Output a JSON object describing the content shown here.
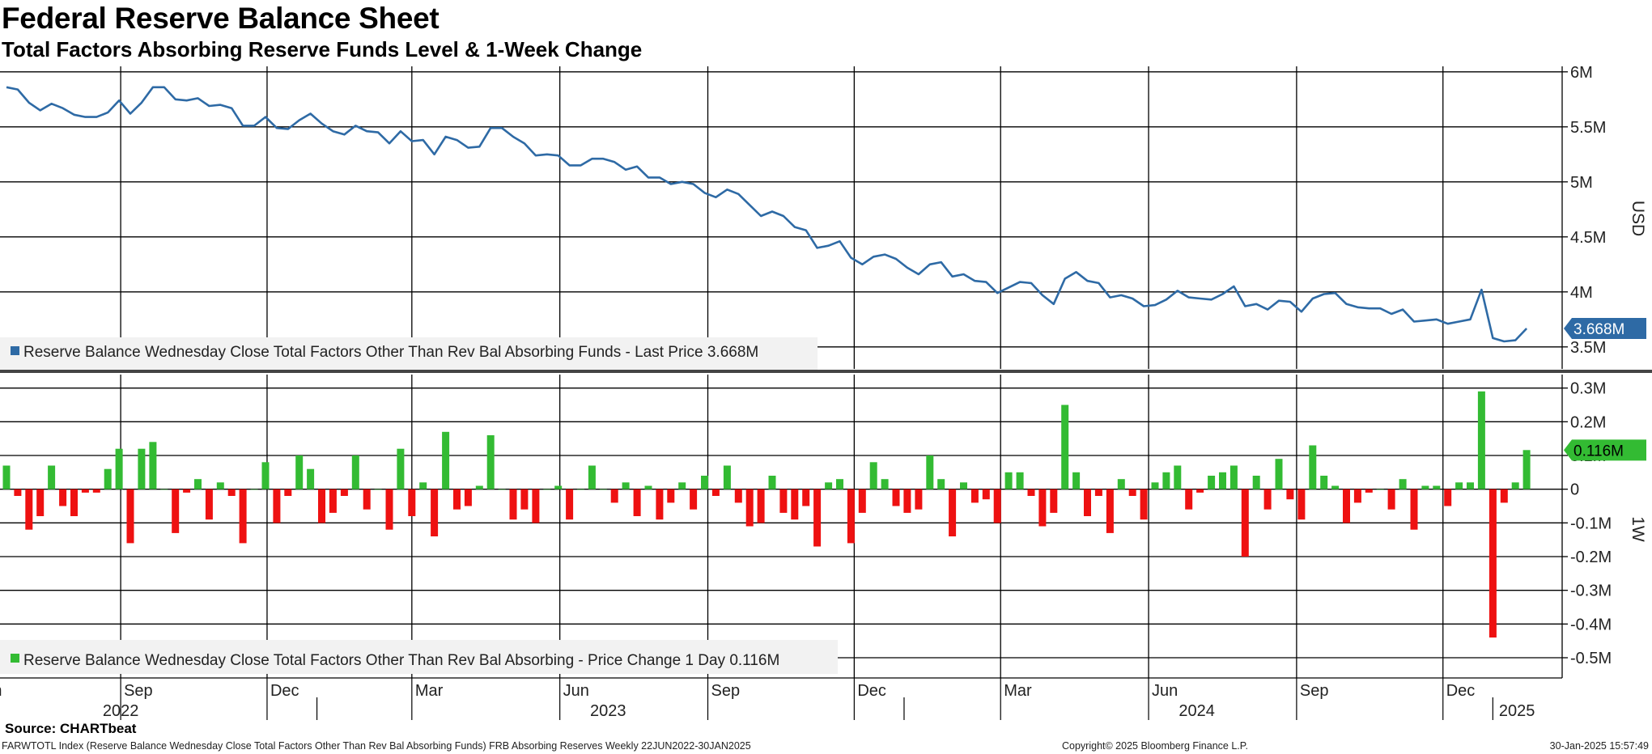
{
  "header": {
    "title": "Federal Reserve Balance Sheet",
    "subtitle": "Total Factors Absorbing Reserve Funds Level & 1-Week Change"
  },
  "footer": {
    "source": "Source: CHARTbeat",
    "description": "FARWTOTL Index (Reserve Balance Wednesday Close Total Factors Other Than Rev Bal Absorbing Funds) FRB Absorbing Reserves  Weekly 22JUN2022-30JAN2025",
    "copyright": "Copyright© 2025 Bloomberg Finance L.P.",
    "timestamp": "30-Jan-2025 15:57:49"
  },
  "colors": {
    "level_line": "#2e6aa5",
    "positive_bar": "#33bb33",
    "negative_bar": "#ee1111",
    "grid": "#000000"
  },
  "chart_data": [
    {
      "type": "line",
      "x_unit": "weekly dates (Wednesday)",
      "x_start": "2022-06-22",
      "x_end": "2025-01-29",
      "ylabel": "USD",
      "ylim": [
        3.3,
        6.05
      ],
      "y_unit": "millions",
      "y_ticks": [
        "3.5M",
        "4M",
        "4.5M",
        "5M",
        "5.5M",
        "6M"
      ],
      "grid": true,
      "legend": "Reserve Balance Wednesday Close Total Factors Other Than Rev Bal Absorbing Funds - Last Price 3.668M",
      "legend_position": "bottom-left",
      "last_value_label": "3.668M",
      "series": [
        {
          "values": [
            5.86,
            5.84,
            5.72,
            5.65,
            5.71,
            5.67,
            5.61,
            5.59,
            5.59,
            5.63,
            5.74,
            5.62,
            5.72,
            5.86,
            5.86,
            5.75,
            5.74,
            5.76,
            5.69,
            5.7,
            5.67,
            5.51,
            5.51,
            5.59,
            5.49,
            5.48,
            5.56,
            5.62,
            5.53,
            5.46,
            5.43,
            5.51,
            5.46,
            5.45,
            5.35,
            5.46,
            5.37,
            5.38,
            5.25,
            5.41,
            5.38,
            5.31,
            5.32,
            5.49,
            5.49,
            5.41,
            5.35,
            5.24,
            5.25,
            5.24,
            5.15,
            5.15,
            5.21,
            5.21,
            5.18,
            5.11,
            5.14,
            5.04,
            5.04,
            4.98,
            5.0,
            4.98,
            4.9,
            4.86,
            4.93,
            4.89,
            4.79,
            4.69,
            4.73,
            4.69,
            4.59,
            4.56,
            4.4,
            4.42,
            4.46,
            4.31,
            4.25,
            4.32,
            4.34,
            4.3,
            4.22,
            4.16,
            4.25,
            4.27,
            4.14,
            4.16,
            4.1,
            4.09,
            3.99,
            4.04,
            4.09,
            4.08,
            3.97,
            3.89,
            4.12,
            4.18,
            4.1,
            4.08,
            3.95,
            3.97,
            3.94,
            3.87,
            3.88,
            3.93,
            4.01,
            3.95,
            3.94,
            3.93,
            3.98,
            4.05,
            3.87,
            3.89,
            3.84,
            3.92,
            3.91,
            3.82,
            3.94,
            3.98,
            3.99,
            3.89,
            3.86,
            3.85,
            3.85,
            3.8,
            3.84,
            3.73,
            3.74,
            3.75,
            3.71,
            3.73,
            3.75,
            4.02,
            3.58,
            3.55,
            3.56,
            3.668
          ]
        }
      ]
    },
    {
      "type": "bar",
      "x_unit": "weekly dates (Wednesday)",
      "x_start": "2022-06-22",
      "x_end": "2025-01-29",
      "ylabel": "1W",
      "ylim": [
        -0.56,
        0.34
      ],
      "y_unit": "millions",
      "y_ticks": [
        "-0.5M",
        "-0.4M",
        "-0.3M",
        "-0.2M",
        "-0.1M",
        "0",
        "0.1M",
        "0.2M",
        "0.3M"
      ],
      "grid": true,
      "legend": "Reserve Balance Wednesday Close Total Factors Other Than Rev Bal Absorbing - Price Change 1 Day 0.116M",
      "legend_position": "bottom-left",
      "last_value_label": "0.116M",
      "series": [
        {
          "values": [
            0.07,
            -0.02,
            -0.12,
            -0.08,
            0.07,
            -0.05,
            -0.08,
            -0.01,
            -0.01,
            0.06,
            0.12,
            -0.16,
            0.12,
            0.14,
            0.0,
            -0.13,
            -0.01,
            0.03,
            -0.09,
            0.02,
            -0.02,
            -0.16,
            0.0,
            0.08,
            -0.1,
            -0.02,
            0.1,
            0.06,
            -0.1,
            -0.07,
            -0.02,
            0.1,
            -0.06,
            0.0,
            -0.12,
            0.12,
            -0.08,
            0.02,
            -0.14,
            0.17,
            -0.06,
            -0.05,
            0.01,
            0.16,
            0.0,
            -0.09,
            -0.06,
            -0.1,
            0.0,
            0.01,
            -0.09,
            0.0,
            0.07,
            0.0,
            -0.04,
            0.02,
            -0.08,
            0.01,
            -0.09,
            -0.04,
            0.02,
            -0.06,
            0.04,
            -0.02,
            0.07,
            -0.04,
            -0.11,
            -0.1,
            0.04,
            -0.07,
            -0.09,
            -0.05,
            -0.17,
            0.02,
            0.03,
            -0.16,
            -0.07,
            0.08,
            0.03,
            -0.05,
            -0.07,
            -0.06,
            0.1,
            0.03,
            -0.14,
            0.02,
            -0.04,
            -0.03,
            -0.1,
            0.05,
            0.05,
            -0.02,
            -0.11,
            -0.07,
            0.25,
            0.05,
            -0.08,
            -0.02,
            -0.13,
            0.03,
            -0.02,
            -0.09,
            0.02,
            0.05,
            0.07,
            -0.06,
            -0.01,
            0.04,
            0.05,
            0.07,
            -0.2,
            0.04,
            -0.06,
            0.09,
            -0.03,
            -0.09,
            0.13,
            0.04,
            0.01,
            -0.1,
            -0.04,
            -0.01,
            0.0,
            -0.06,
            0.03,
            -0.12,
            0.01,
            0.01,
            -0.05,
            0.02,
            0.02,
            0.29,
            -0.44,
            -0.04,
            0.02,
            0.116
          ]
        }
      ]
    }
  ],
  "x_axis": {
    "month_labels": [
      "Jun",
      "Sep",
      "Dec",
      "Mar",
      "Jun",
      "Sep",
      "Dec",
      "Mar",
      "Jun",
      "Sep",
      "Dec"
    ],
    "month_dates": [
      "2022-06-01",
      "2022-09-01",
      "2022-12-01",
      "2023-03-01",
      "2023-06-01",
      "2023-09-01",
      "2023-12-01",
      "2024-03-01",
      "2024-06-01",
      "2024-09-01",
      "2024-12-01"
    ],
    "year_labels": [
      "2022",
      "2023",
      "2024",
      "2025"
    ],
    "year_dates": [
      "2022-09-01",
      "2023-07-01",
      "2024-07-01",
      "2025-01-16"
    ]
  }
}
